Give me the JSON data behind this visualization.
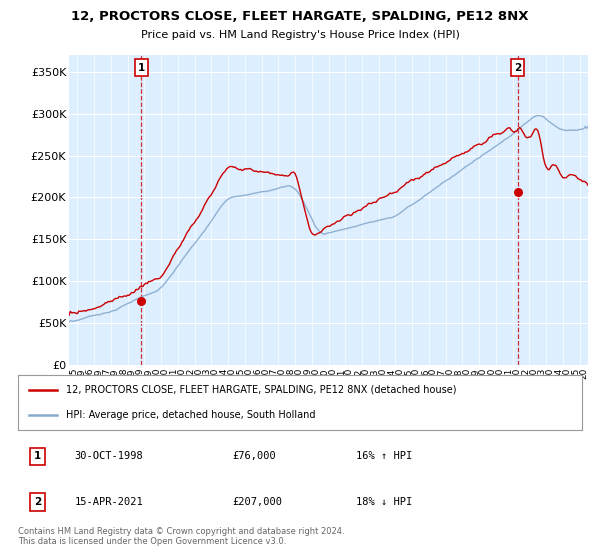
{
  "title": "12, PROCTORS CLOSE, FLEET HARGATE, SPALDING, PE12 8NX",
  "subtitle": "Price paid vs. HM Land Registry's House Price Index (HPI)",
  "ylabel_ticks": [
    "£0",
    "£50K",
    "£100K",
    "£150K",
    "£200K",
    "£250K",
    "£300K",
    "£350K"
  ],
  "ytick_values": [
    0,
    50000,
    100000,
    150000,
    200000,
    250000,
    300000,
    350000
  ],
  "ylim": [
    0,
    370000
  ],
  "xlim_start": 1994.5,
  "xlim_end": 2025.5,
  "sale1_year": 1998.83,
  "sale1_price": 76000,
  "sale2_year": 2021.29,
  "sale2_price": 207000,
  "legend_line1": "12, PROCTORS CLOSE, FLEET HARGATE, SPALDING, PE12 8NX (detached house)",
  "legend_line2": "HPI: Average price, detached house, South Holland",
  "footer": "Contains HM Land Registry data © Crown copyright and database right 2024.\nThis data is licensed under the Open Government Licence v3.0.",
  "table_rows": [
    {
      "num": "1",
      "date": "30-OCT-1998",
      "price": "£76,000",
      "hpi": "16% ↑ HPI"
    },
    {
      "num": "2",
      "date": "15-APR-2021",
      "price": "£207,000",
      "hpi": "18% ↓ HPI"
    }
  ],
  "property_color": "#cc0000",
  "hpi_color": "#88aacc",
  "chart_bg": "#ddeeff",
  "grid_color": "#ffffff"
}
